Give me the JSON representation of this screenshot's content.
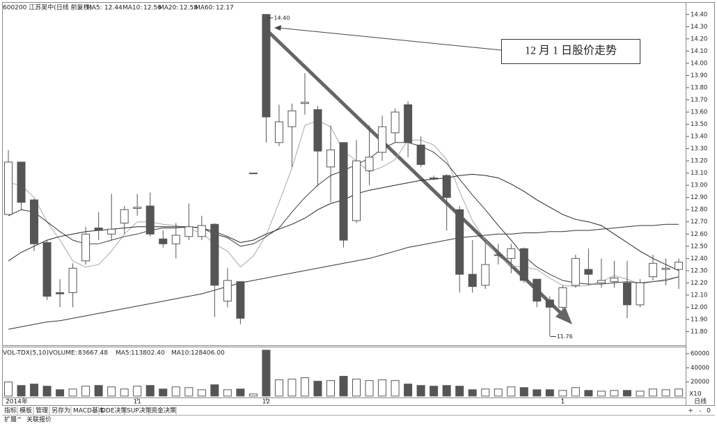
{
  "chart_data": [
    {
      "type": "candlestick",
      "title": "600200 江苏吴中(日线 前复权)",
      "categories": [
        "2014年",
        null,
        null,
        null,
        null,
        null,
        null,
        null,
        null,
        null,
        "11",
        null,
        null,
        null,
        null,
        null,
        null,
        null,
        null,
        null,
        "12",
        null,
        null,
        null,
        null,
        null,
        null,
        null,
        null,
        null,
        null,
        null,
        null,
        null,
        null,
        null,
        null,
        null,
        null,
        null,
        null,
        null,
        null,
        "1",
        null,
        null,
        null,
        null,
        null,
        null,
        null,
        null,
        null
      ],
      "open": [
        12.76,
        13.19,
        12.88,
        12.53,
        12.12,
        12.12,
        12.38,
        12.65,
        12.6,
        12.69,
        12.81,
        12.83,
        12.56,
        12.52,
        12.58,
        12.58,
        12.68,
        12.05,
        12.21,
        13.1,
        14.4,
        13.35,
        13.48,
        13.67,
        13.62,
        13.15,
        13.35,
        12.71,
        13.12,
        13.27,
        13.43,
        13.66,
        13.33,
        13.06,
        13.08,
        12.8,
        12.27,
        12.18,
        12.43,
        12.4,
        12.48,
        12.23,
        12.06,
        12.0,
        12.18,
        12.31,
        12.2,
        12.21,
        12.2,
        12.02,
        12.25,
        12.31,
        12.31
      ],
      "high": [
        13.29,
        13.19,
        12.89,
        12.55,
        12.23,
        12.36,
        12.66,
        12.78,
        12.93,
        12.83,
        12.93,
        12.94,
        12.63,
        12.69,
        12.85,
        12.75,
        12.69,
        12.32,
        12.21,
        13.1,
        14.4,
        13.66,
        13.67,
        13.92,
        13.65,
        13.49,
        13.35,
        13.37,
        13.49,
        13.57,
        13.63,
        13.69,
        13.4,
        13.08,
        13.09,
        12.83,
        12.55,
        12.55,
        12.52,
        12.52,
        12.49,
        12.23,
        12.09,
        12.18,
        12.43,
        12.48,
        12.4,
        12.38,
        12.38,
        12.23,
        12.43,
        12.4,
        12.4
      ],
      "low": [
        12.76,
        12.8,
        12.46,
        12.06,
        12.0,
        12.0,
        12.35,
        12.55,
        12.55,
        12.6,
        12.75,
        12.58,
        12.49,
        12.4,
        12.55,
        12.55,
        11.92,
        12.0,
        11.86,
        13.1,
        13.35,
        13.32,
        13.15,
        13.58,
        12.99,
        12.86,
        12.49,
        12.69,
        13.0,
        13.2,
        13.35,
        13.23,
        13.15,
        13.04,
        12.63,
        12.12,
        12.12,
        12.15,
        12.35,
        12.28,
        12.2,
        12.0,
        11.76,
        11.98,
        12.16,
        12.18,
        12.16,
        12.16,
        11.91,
        12.0,
        12.22,
        12.18,
        12.15
      ],
      "close": [
        13.19,
        12.86,
        12.52,
        12.09,
        12.11,
        12.32,
        12.6,
        12.63,
        12.64,
        12.8,
        12.82,
        12.6,
        12.52,
        12.59,
        12.66,
        12.67,
        12.18,
        12.22,
        11.91,
        13.1,
        13.56,
        13.52,
        13.61,
        13.68,
        13.28,
        13.29,
        12.55,
        13.2,
        13.23,
        13.48,
        13.6,
        13.35,
        13.17,
        13.05,
        12.9,
        12.27,
        12.17,
        12.35,
        12.43,
        12.48,
        12.22,
        12.05,
        12.0,
        12.16,
        12.4,
        12.27,
        12.22,
        12.24,
        12.02,
        12.2,
        12.36,
        12.32,
        12.37
      ],
      "color": "#555555",
      "series": [
        {
          "label": "MA5:",
          "value": 12.44,
          "color": "#a8a8a8",
          "values": [
            13.02,
            13.0,
            12.9,
            12.7,
            12.55,
            12.38,
            12.33,
            12.35,
            12.46,
            12.6,
            12.7,
            12.7,
            12.68,
            12.67,
            12.64,
            12.61,
            12.52,
            12.46,
            12.33,
            12.42,
            12.59,
            12.86,
            13.14,
            13.49,
            13.53,
            13.48,
            13.28,
            13.2,
            13.11,
            13.15,
            13.21,
            13.37,
            13.37,
            13.33,
            13.21,
            12.95,
            12.71,
            12.55,
            12.42,
            12.34,
            12.33,
            12.31,
            12.24,
            12.18,
            12.17,
            12.18,
            12.21,
            12.26,
            12.23,
            12.19,
            12.21,
            12.23,
            12.25
          ]
        },
        {
          "label": "MA10:",
          "value": 12.56,
          "color": "#3c3c3c",
          "values": [
            12.75,
            12.8,
            12.78,
            12.7,
            12.62,
            12.55,
            12.52,
            12.52,
            12.55,
            12.58,
            12.6,
            12.63,
            12.65,
            12.65,
            12.66,
            12.65,
            12.6,
            12.57,
            12.5,
            12.52,
            12.58,
            12.65,
            12.78,
            12.9,
            13.0,
            13.08,
            13.12,
            13.17,
            13.22,
            13.3,
            13.35,
            13.35,
            13.32,
            13.27,
            13.18,
            13.05,
            12.92,
            12.8,
            12.67,
            12.55,
            12.42,
            12.33,
            12.27,
            12.22,
            12.2,
            12.19,
            12.19,
            12.2,
            12.21,
            12.2,
            12.21,
            12.22,
            12.25
          ]
        },
        {
          "label": "MA20:",
          "value": 12.58,
          "color": "#222222",
          "values": [
            12.38,
            12.45,
            12.5,
            12.55,
            12.58,
            12.6,
            12.62,
            12.63,
            12.64,
            12.65,
            12.66,
            12.66,
            12.66,
            12.66,
            12.66,
            12.65,
            12.62,
            12.58,
            12.53,
            12.55,
            12.6,
            12.64,
            12.68,
            12.73,
            12.8,
            12.85,
            12.88,
            12.93,
            12.96,
            12.98,
            13.0,
            13.02,
            13.04,
            13.05,
            13.06,
            13.08,
            13.09,
            13.08,
            13.06,
            13.01,
            12.95,
            12.88,
            12.82,
            12.76,
            12.72,
            12.7,
            12.67,
            12.6,
            12.53,
            12.46,
            12.4,
            12.35,
            12.3
          ]
        },
        {
          "label": "MA60:",
          "value": 12.17,
          "color": "#333333",
          "values": [
            11.82,
            11.84,
            11.86,
            11.88,
            11.89,
            11.91,
            11.93,
            11.95,
            11.97,
            11.99,
            12.01,
            12.03,
            12.05,
            12.07,
            12.09,
            12.11,
            12.14,
            12.17,
            12.2,
            12.22,
            12.24,
            12.26,
            12.28,
            12.3,
            12.32,
            12.34,
            12.36,
            12.38,
            12.4,
            12.43,
            12.46,
            12.49,
            12.51,
            12.53,
            12.55,
            12.57,
            12.58,
            12.59,
            12.6,
            12.6,
            12.61,
            12.61,
            12.62,
            12.62,
            12.63,
            12.63,
            12.64,
            12.65,
            12.66,
            12.67,
            12.67,
            12.68,
            12.68
          ]
        }
      ],
      "ylim": [
        11.7,
        14.45
      ],
      "yticks": [
        {
          "value": 11.8,
          "label": "11.80"
        },
        {
          "value": 11.9,
          "label": "11.90"
        },
        {
          "value": 12.0,
          "label": "12.00"
        },
        {
          "value": 12.1,
          "label": "12.10"
        },
        {
          "value": 12.2,
          "label": "12.20"
        },
        {
          "value": 12.3,
          "label": "12.30"
        },
        {
          "value": 12.4,
          "label": "12.40"
        },
        {
          "value": 12.5,
          "label": "12.50"
        },
        {
          "value": 12.6,
          "label": "12.60"
        },
        {
          "value": 12.7,
          "label": "12.70"
        },
        {
          "value": 12.8,
          "label": "12.80"
        },
        {
          "value": 12.9,
          "label": "12.90"
        },
        {
          "value": 13.0,
          "label": "13.00"
        },
        {
          "value": 13.1,
          "label": "13.10"
        },
        {
          "value": 13.2,
          "label": "13.20"
        },
        {
          "value": 13.3,
          "label": "13.30"
        },
        {
          "value": 13.4,
          "label": "13.40"
        },
        {
          "value": 13.5,
          "label": "13.50"
        },
        {
          "value": 13.6,
          "label": "13.60"
        },
        {
          "value": 13.7,
          "label": "13.70"
        },
        {
          "value": 13.8,
          "label": "13.80"
        },
        {
          "value": 13.9,
          "label": "13.90"
        },
        {
          "value": 14.0,
          "label": "14.00"
        },
        {
          "value": 14.1,
          "label": "14.10"
        },
        {
          "value": 14.2,
          "label": "14.20"
        },
        {
          "value": 14.3,
          "label": "14.30"
        },
        {
          "value": 14.4,
          "label": "14.40"
        }
      ],
      "grid": false,
      "high_label": {
        "value": 14.4,
        "label": "14.40"
      },
      "low_label": {
        "value": 11.76,
        "label": "11.76"
      },
      "callout": "12 月 1 日股价走势",
      "period": "日线"
    },
    {
      "type": "bar",
      "title": "VOL-TDX(5,10)",
      "volume": {
        "label": "VOLUME:",
        "value": 83667.48
      },
      "ma5": {
        "label": "MA5:",
        "value": {
          "value": 113802.4,
          "label": "113802.40"
        }
      },
      "ma10": {
        "label": "MA10:",
        "value": {
          "value": 128406,
          "label": "128406.00"
        }
      },
      "values": [
        20000,
        15000,
        17000,
        14000,
        9000,
        10000,
        14000,
        15000,
        13000,
        10000,
        14000,
        15000,
        10000,
        13000,
        12000,
        9000,
        16000,
        9000,
        10000,
        3000,
        65000,
        23000,
        24000,
        26000,
        21000,
        22000,
        28000,
        24000,
        22000,
        23000,
        22000,
        17000,
        15000,
        14000,
        15000,
        14000,
        9000,
        10000,
        10000,
        13000,
        12000,
        9000,
        9000,
        8000,
        12000,
        8000,
        7000,
        8000,
        8000,
        7000,
        10000,
        9000,
        10000
      ],
      "color": "#555555",
      "ylim": [
        0,
        69000
      ],
      "yticks": [
        20000,
        40000,
        60000
      ],
      "axis_unit": "X10"
    }
  ],
  "toolbar": {
    "tabs": [
      "指标",
      "模板",
      "管理",
      "另存为",
      "MACD基本",
      "DDE决策",
      "SUP决策",
      "资金决策"
    ],
    "bottom": [
      "扩展^",
      "关联报价"
    ],
    "controls": [
      "+",
      "-",
      "0"
    ]
  }
}
